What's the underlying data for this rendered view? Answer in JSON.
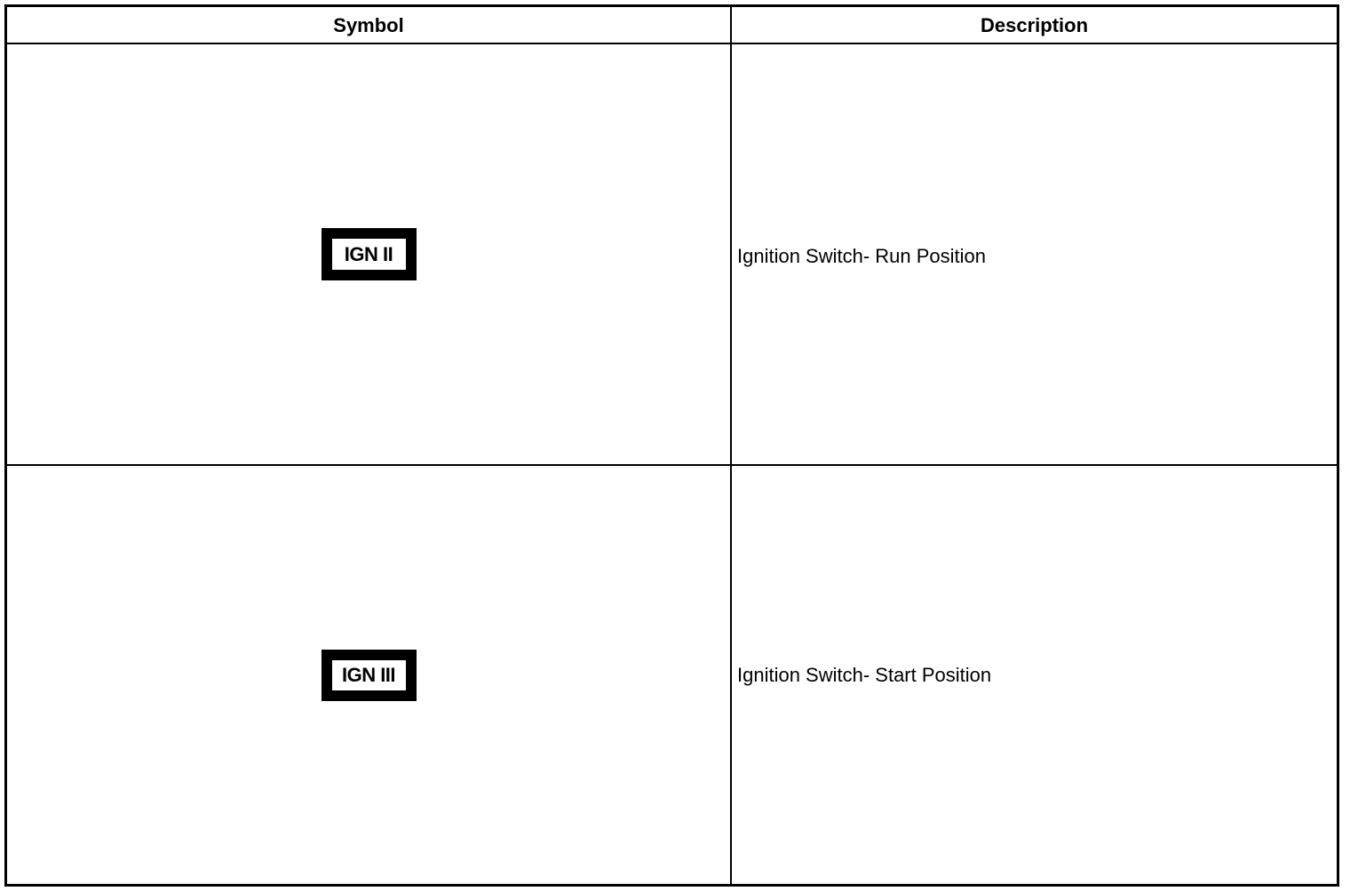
{
  "table": {
    "headers": {
      "symbol": "Symbol",
      "description": "Description"
    },
    "rows": [
      {
        "symbol": "IGN II",
        "description": "Ignition Switch- Run Position"
      },
      {
        "symbol": "IGN III",
        "description": "Ignition Switch- Start Position"
      }
    ]
  }
}
